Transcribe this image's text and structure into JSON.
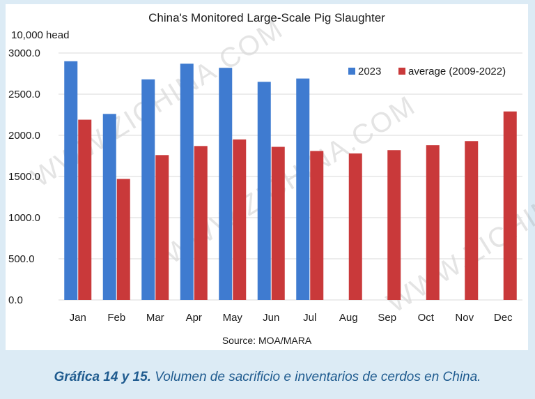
{
  "chart_data": {
    "type": "bar",
    "title": "China's Monitored Large-Scale Pig Slaughter",
    "ylabel": "10,000 head",
    "categories": [
      "Jan",
      "Feb",
      "Mar",
      "Apr",
      "May",
      "Jun",
      "Jul",
      "Aug",
      "Sep",
      "Oct",
      "Nov",
      "Dec"
    ],
    "series": [
      {
        "name": "2023",
        "values": [
          2900,
          2260,
          2680,
          2870,
          2820,
          2650,
          2690,
          null,
          null,
          null,
          null,
          null
        ],
        "color": "#3f7bd0"
      },
      {
        "name": "average (2009-2022)",
        "values": [
          2190,
          1470,
          1760,
          1870,
          1950,
          1860,
          1810,
          1780,
          1820,
          1880,
          1930,
          2290
        ],
        "color": "#c9393a"
      }
    ],
    "ylim": [
      0,
      3000
    ],
    "yticks": [
      "0.0",
      "500.0",
      "1000.0",
      "1500.0",
      "2000.0",
      "2500.0",
      "3000.0"
    ],
    "grid": true,
    "legend": "top-right",
    "source": "Source: MOA/MARA"
  },
  "watermark": "WWW.ZICHINA.COM",
  "caption": {
    "bold": "Gráfica 14 y 15.",
    "text": " Volumen de sacrificio e inventarios de cerdos en China."
  }
}
